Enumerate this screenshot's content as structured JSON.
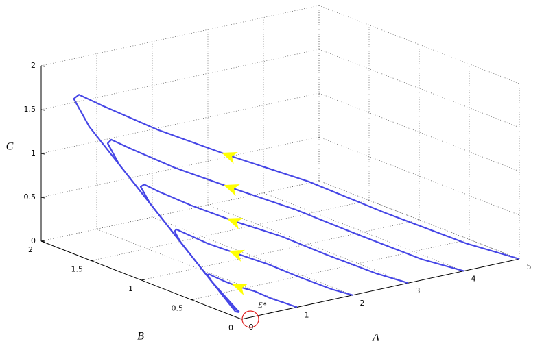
{
  "chart_data": {
    "type": "line3d",
    "xlabel": "A",
    "ylabel": "B",
    "zlabel": "C",
    "xlim": [
      0,
      5
    ],
    "ylim": [
      0,
      2
    ],
    "zlim": [
      0,
      2
    ],
    "xticks": [
      0,
      1,
      2,
      3,
      4,
      5
    ],
    "yticks": [
      0,
      0.5,
      1,
      1.5,
      2
    ],
    "zticks": [
      0,
      0.5,
      1,
      1.5,
      2
    ],
    "grid": true,
    "arrow_color": "#ffff00",
    "annotation": {
      "text": "E*",
      "x": 0,
      "y": 0,
      "z": 0,
      "color": "#e02020"
    },
    "series": [
      {
        "color": "#4646e6",
        "x": [
          5,
          4.38,
          3.49,
          2.7,
          1.8,
          1.01,
          0.46,
          0.23,
          0.1,
          0,
          0,
          0,
          0,
          0,
          0.05
        ],
        "y": [
          0,
          0.18,
          0.51,
          0.83,
          1.12,
          1.4,
          1.64,
          1.75,
          1.73,
          1.52,
          1.22,
          0.9,
          0.6,
          0.3,
          0.05
        ],
        "z": [
          0,
          0.18,
          0.51,
          0.83,
          1.12,
          1.4,
          1.64,
          1.75,
          1.73,
          1.52,
          1.22,
          0.9,
          0.6,
          0.3,
          0.05
        ]
      },
      {
        "color": "#4646e6",
        "x": [
          4,
          3.5,
          2.79,
          2.16,
          1.44,
          0.81,
          0.37,
          0.18,
          0.08,
          0,
          0,
          0,
          0,
          0,
          0.05
        ],
        "y": [
          0,
          0.14,
          0.41,
          0.66,
          0.9,
          1.12,
          1.31,
          1.4,
          1.38,
          1.22,
          0.98,
          0.72,
          0.48,
          0.24,
          0.05
        ],
        "z": [
          0,
          0.14,
          0.41,
          0.66,
          0.9,
          1.12,
          1.31,
          1.4,
          1.38,
          1.22,
          0.98,
          0.72,
          0.48,
          0.24,
          0.05
        ]
      },
      {
        "color": "#4646e6",
        "x": [
          3,
          2.63,
          2.09,
          1.62,
          1.08,
          0.61,
          0.28,
          0.14,
          0.06,
          0,
          0,
          0,
          0,
          0,
          0.05
        ],
        "y": [
          0,
          0.11,
          0.31,
          0.5,
          0.67,
          0.84,
          0.98,
          1.05,
          1.04,
          0.91,
          0.73,
          0.54,
          0.36,
          0.18,
          0.05
        ],
        "z": [
          0,
          0.11,
          0.31,
          0.5,
          0.67,
          0.84,
          0.98,
          1.05,
          1.04,
          0.91,
          0.73,
          0.54,
          0.36,
          0.18,
          0.05
        ]
      },
      {
        "color": "#4646e6",
        "x": [
          2,
          1.75,
          1.4,
          1.08,
          0.72,
          0.4,
          0.18,
          0.09,
          0.04,
          0,
          0,
          0,
          0,
          0,
          0.05
        ],
        "y": [
          0,
          0.07,
          0.2,
          0.33,
          0.45,
          0.56,
          0.66,
          0.7,
          0.69,
          0.61,
          0.49,
          0.36,
          0.24,
          0.12,
          0.05
        ],
        "z": [
          0,
          0.07,
          0.2,
          0.33,
          0.45,
          0.56,
          0.66,
          0.7,
          0.69,
          0.61,
          0.49,
          0.36,
          0.24,
          0.12,
          0.05
        ]
      },
      {
        "color": "#4646e6",
        "x": [
          1,
          0.88,
          0.7,
          0.54,
          0.36,
          0.2,
          0.09,
          0.05,
          0.02,
          0,
          0,
          0,
          0,
          0,
          0.05
        ],
        "y": [
          0,
          0.04,
          0.1,
          0.17,
          0.22,
          0.28,
          0.33,
          0.35,
          0.35,
          0.3,
          0.24,
          0.18,
          0.12,
          0.06,
          0.05
        ],
        "z": [
          0,
          0.04,
          0.1,
          0.17,
          0.22,
          0.28,
          0.33,
          0.35,
          0.35,
          0.3,
          0.24,
          0.18,
          0.12,
          0.06,
          0.05
        ]
      }
    ]
  }
}
